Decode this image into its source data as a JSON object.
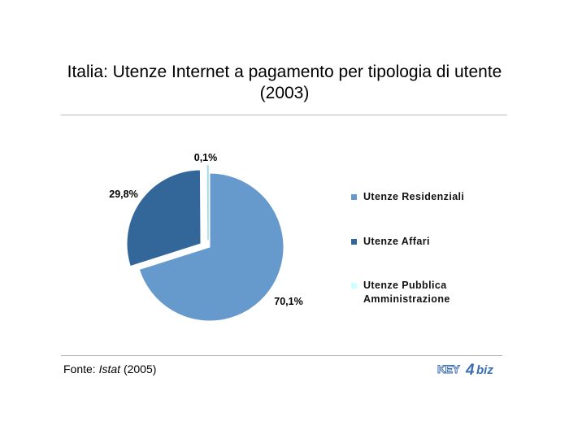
{
  "title_line1": "Italia: Utenze Internet a pagamento per tipologia di utente",
  "title_line2": "(2003)",
  "chart_data": {
    "type": "pie",
    "title": "Italia: Utenze Internet a pagamento per tipologia di utente (2003)",
    "slices": [
      {
        "name": "Utenze Residenziali",
        "value": 70.1,
        "label": "70,1%",
        "color": "#6699cc"
      },
      {
        "name": "Utenze Affari",
        "value": 29.8,
        "label": "29,8%",
        "color": "#336699"
      },
      {
        "name": "Utenze Pubblica Amministrazione",
        "value": 0.1,
        "label": "0,1%",
        "color": "#ccffff"
      }
    ],
    "legend_position": "right"
  },
  "legend": {
    "items": [
      {
        "label": "Utenze Residenziali",
        "color": "#6699cc"
      },
      {
        "label": "Utenze Affari",
        "color": "#336699"
      },
      {
        "label": "Utenze Pubblica Amministrazione",
        "color": "#ccffff"
      }
    ]
  },
  "source": {
    "prefix": "Fonte: ",
    "name": "Istat",
    "suffix": " (2005)"
  },
  "logo": {
    "text_left": "KEY",
    "text_mid": "4",
    "text_right": "biz",
    "color": "#3a6fb0"
  }
}
